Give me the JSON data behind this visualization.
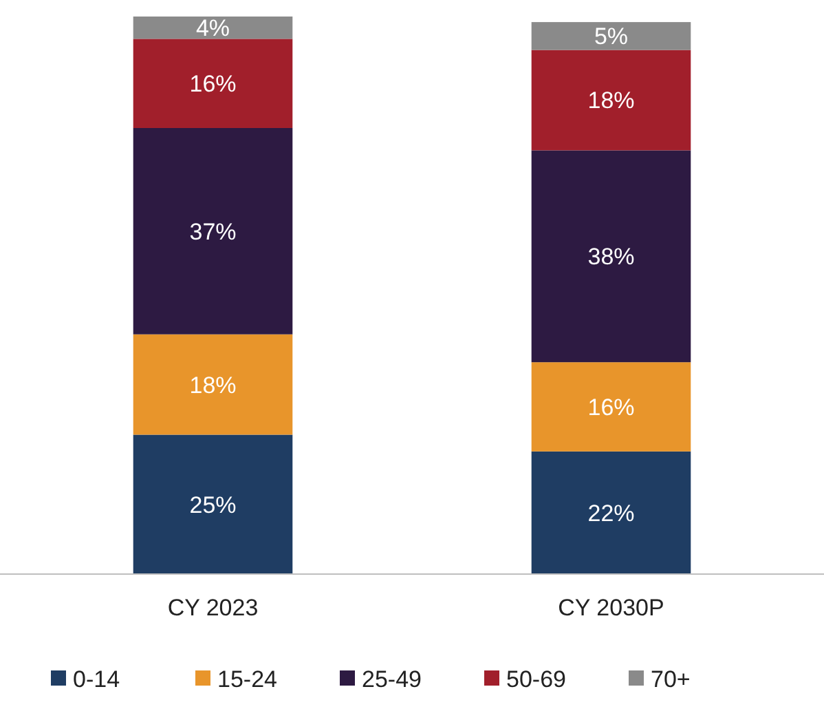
{
  "chart_data": {
    "type": "bar",
    "stacked": true,
    "categories": [
      "CY 2023",
      "CY 2030P"
    ],
    "series": [
      {
        "name": "0-14",
        "color": "#1f3d63",
        "values": [
          25,
          22
        ],
        "value_labels": [
          "25%",
          "22%"
        ]
      },
      {
        "name": "15-24",
        "color": "#e8952b",
        "values": [
          18,
          16
        ],
        "value_labels": [
          "18%",
          "16%"
        ]
      },
      {
        "name": "25-49",
        "color": "#2d1a42",
        "values": [
          37,
          38
        ],
        "value_labels": [
          "37%",
          "38%"
        ]
      },
      {
        "name": "50-69",
        "color": "#a11f2b",
        "values": [
          16,
          18
        ],
        "value_labels": [
          "16%",
          "18%"
        ]
      },
      {
        "name": "70+",
        "color": "#8a8a8a",
        "values": [
          4,
          5
        ],
        "value_labels": [
          "4%",
          "5%"
        ]
      }
    ],
    "legend": "bottom"
  }
}
